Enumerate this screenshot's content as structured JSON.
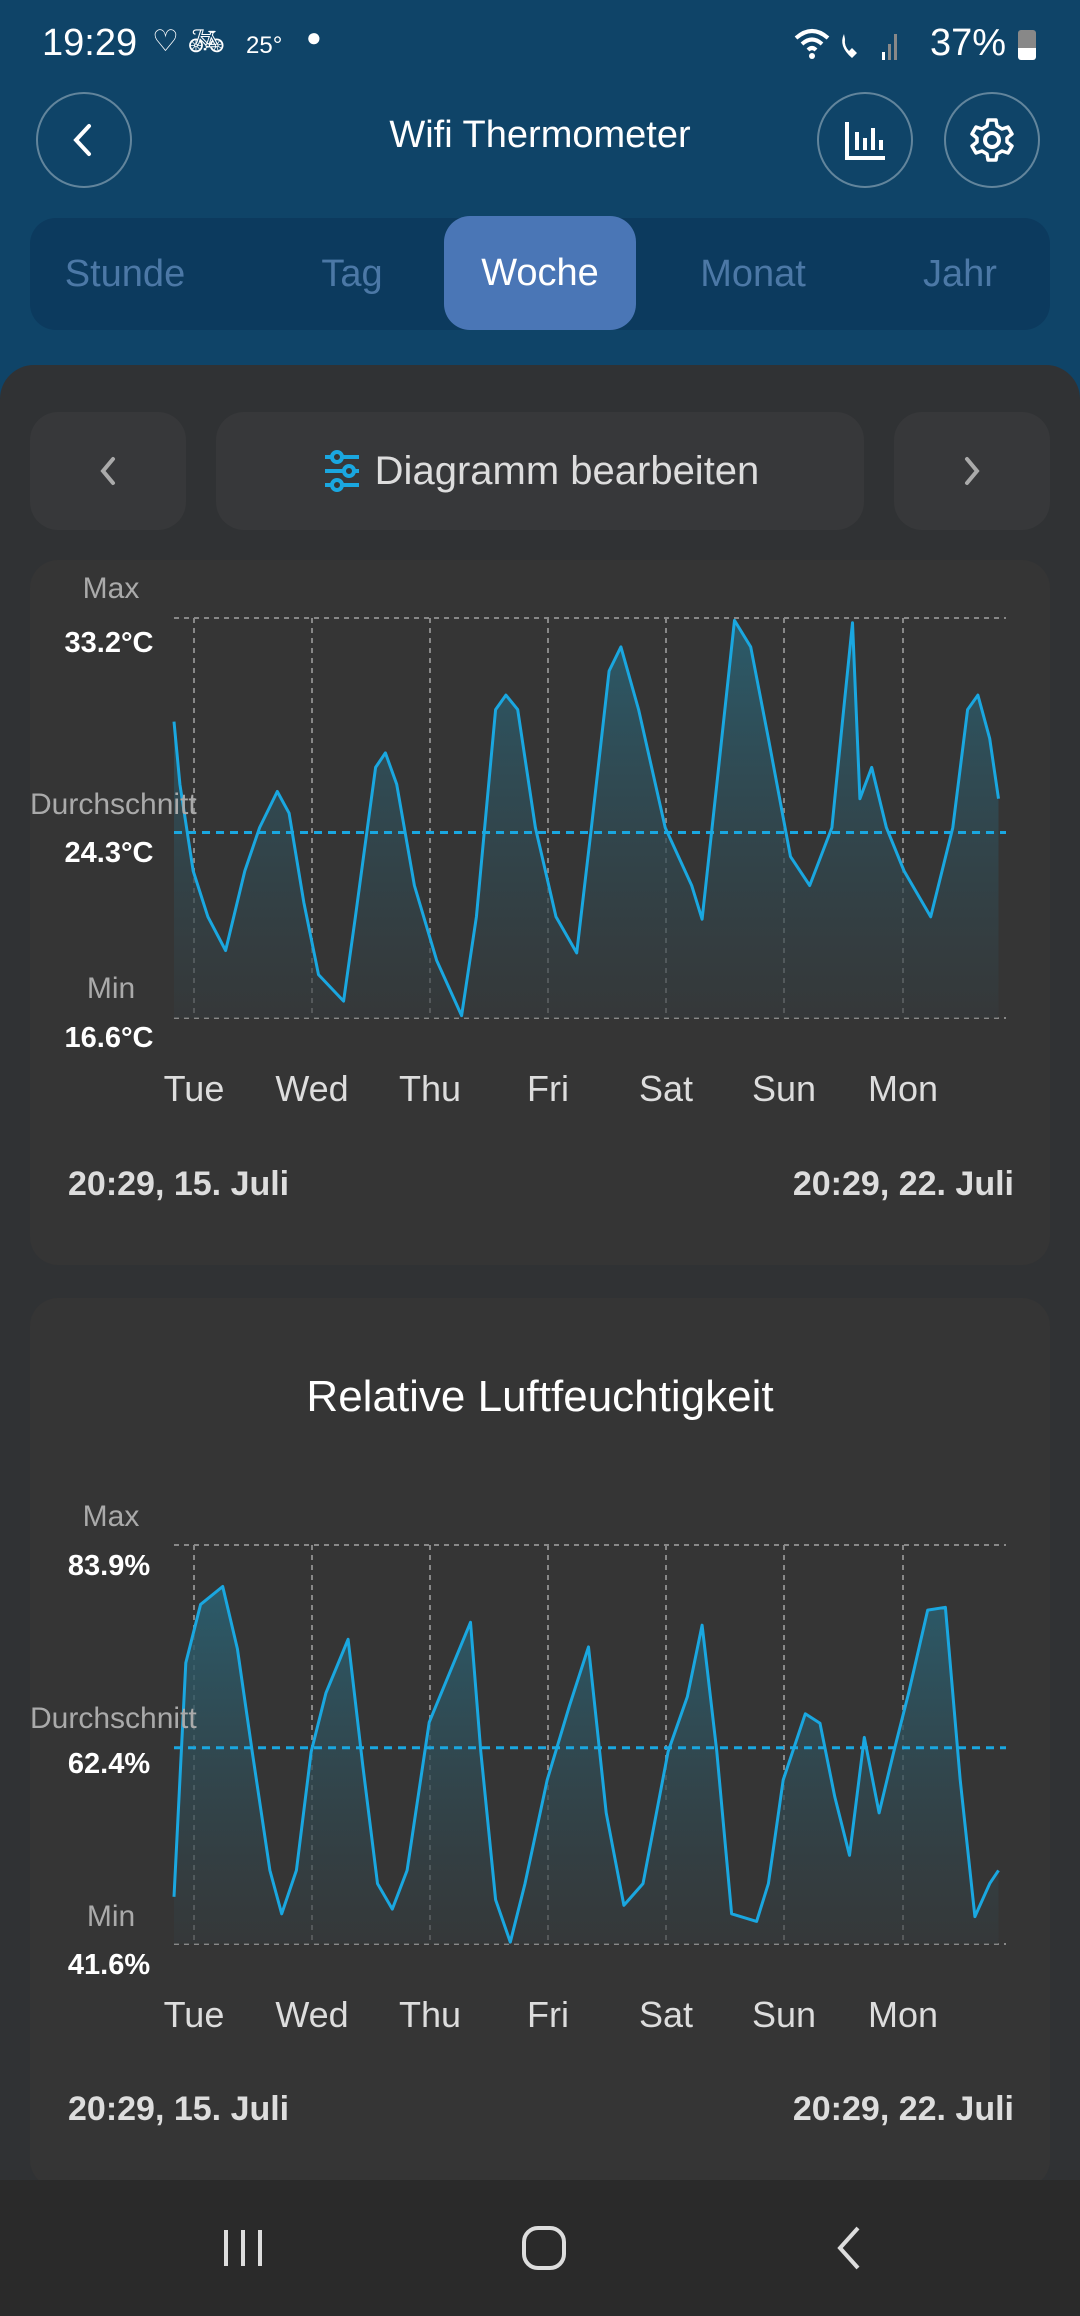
{
  "status_bar": {
    "time": "19:29",
    "temperature": "25°",
    "battery": "37%"
  },
  "header": {
    "title": "Wifi Thermometer"
  },
  "tabs": [
    {
      "label": "Stunde"
    },
    {
      "label": "Tag"
    },
    {
      "label": "Woche",
      "active": true
    },
    {
      "label": "Monat"
    },
    {
      "label": "Jahr"
    }
  ],
  "toolbar": {
    "edit_label": "Diagramm bearbeiten"
  },
  "colors": {
    "accent": "#1aa7e0",
    "header": "#0f4468",
    "active_tab": "#4a76b6"
  },
  "chart_data": [
    {
      "type": "area",
      "title": "",
      "unit": "°C",
      "labels": {
        "max": "Max",
        "avg": "Durchschnitt",
        "min": "Min"
      },
      "max_label": "33.2°C",
      "avg_label": "24.3°C",
      "min_label": "16.6°C",
      "ylim": [
        16.6,
        33.2
      ],
      "average": 24.3,
      "xlim_hours": [
        0,
        168
      ],
      "categories": [
        "Tue",
        "Wed",
        "Thu",
        "Fri",
        "Sat",
        "Sun",
        "Mon"
      ],
      "start_label": "20:29,  15. Juli",
      "end_label": "20:29,  22. Juli",
      "x": [
        0,
        1.2,
        3.9,
        6.9,
        10.5,
        14.4,
        17.4,
        21,
        23.4,
        26.4,
        29.4,
        34.5,
        36.9,
        41,
        43,
        45.3,
        48.9,
        53.4,
        58.5,
        61.5,
        65.4,
        67.5,
        69.9,
        73.5,
        77.7,
        81.9,
        84.9,
        88.5,
        90.9,
        94.5,
        99.9,
        105.3,
        107.4,
        110.4,
        114,
        117.3,
        120.9,
        125.4,
        129.3,
        133.8,
        135.9,
        138,
        139.5,
        141.9,
        144.9,
        148.5,
        153.9,
        158.4,
        161.4,
        163.5,
        165.9,
        167.7
      ],
      "y": [
        28.9,
        26.3,
        22.7,
        20.8,
        19.4,
        22.7,
        24.5,
        26.0,
        25.1,
        21.4,
        18.4,
        17.3,
        20.8,
        27,
        27.6,
        26.3,
        22.1,
        19,
        16.7,
        20.8,
        29.4,
        30,
        29.4,
        24.5,
        20.8,
        19.3,
        24.5,
        31,
        32,
        29.4,
        24.5,
        22.1,
        20.7,
        26.3,
        33.1,
        32,
        28.2,
        23.3,
        22.1,
        24.5,
        28.8,
        33,
        25.7,
        27,
        24.5,
        22.7,
        20.8,
        24.5,
        29.4,
        30,
        28.2,
        25.7
      ]
    },
    {
      "type": "area",
      "title": "Relative Luftfeuchtigkeit",
      "unit": "%",
      "labels": {
        "max": "Max",
        "avg": "Durchschnitt",
        "min": "Min"
      },
      "max_label": "83.9%",
      "avg_label": "62.4%",
      "min_label": "41.6%",
      "ylim": [
        41.6,
        83.9
      ],
      "average": 62.4,
      "xlim_hours": [
        0,
        168
      ],
      "categories": [
        "Tue",
        "Wed",
        "Thu",
        "Fri",
        "Sat",
        "Sun",
        "Mon"
      ],
      "start_label": "20:29,  15. Juli",
      "end_label": "20:29,  22. Juli",
      "x": [
        0,
        2.4,
        5.4,
        9.9,
        12.9,
        15.9,
        19.5,
        21.9,
        24.9,
        27.9,
        30.9,
        35.4,
        38.4,
        41.4,
        44.4,
        47.4,
        51.9,
        60.3,
        62.4,
        65.4,
        68.4,
        71.4,
        75.9,
        80.4,
        84.3,
        87.9,
        91.5,
        95.4,
        100.5,
        104.4,
        107.4,
        110.4,
        113.4,
        118.5,
        120.9,
        123.9,
        128.4,
        131.4,
        134.4,
        137.4,
        140.4,
        143.4,
        146.4,
        149.4,
        153.3,
        156.9,
        159.9,
        162.9,
        165.9,
        167.7
      ],
      "y": [
        46.6,
        71.4,
        77.6,
        79.5,
        72.9,
        62,
        49.4,
        44.8,
        49.4,
        62,
        68.2,
        73.9,
        60.5,
        48,
        45.3,
        49.4,
        65.1,
        75.7,
        62,
        46.3,
        41.8,
        48,
        59,
        66.8,
        73.1,
        55.5,
        45.7,
        48,
        62,
        67.8,
        75.4,
        62,
        44.8,
        44,
        48,
        59,
        66,
        65,
        57.2,
        51,
        63.5,
        55.5,
        62,
        68.2,
        77,
        77.3,
        59,
        44.5,
        48,
        49.4
      ]
    }
  ]
}
